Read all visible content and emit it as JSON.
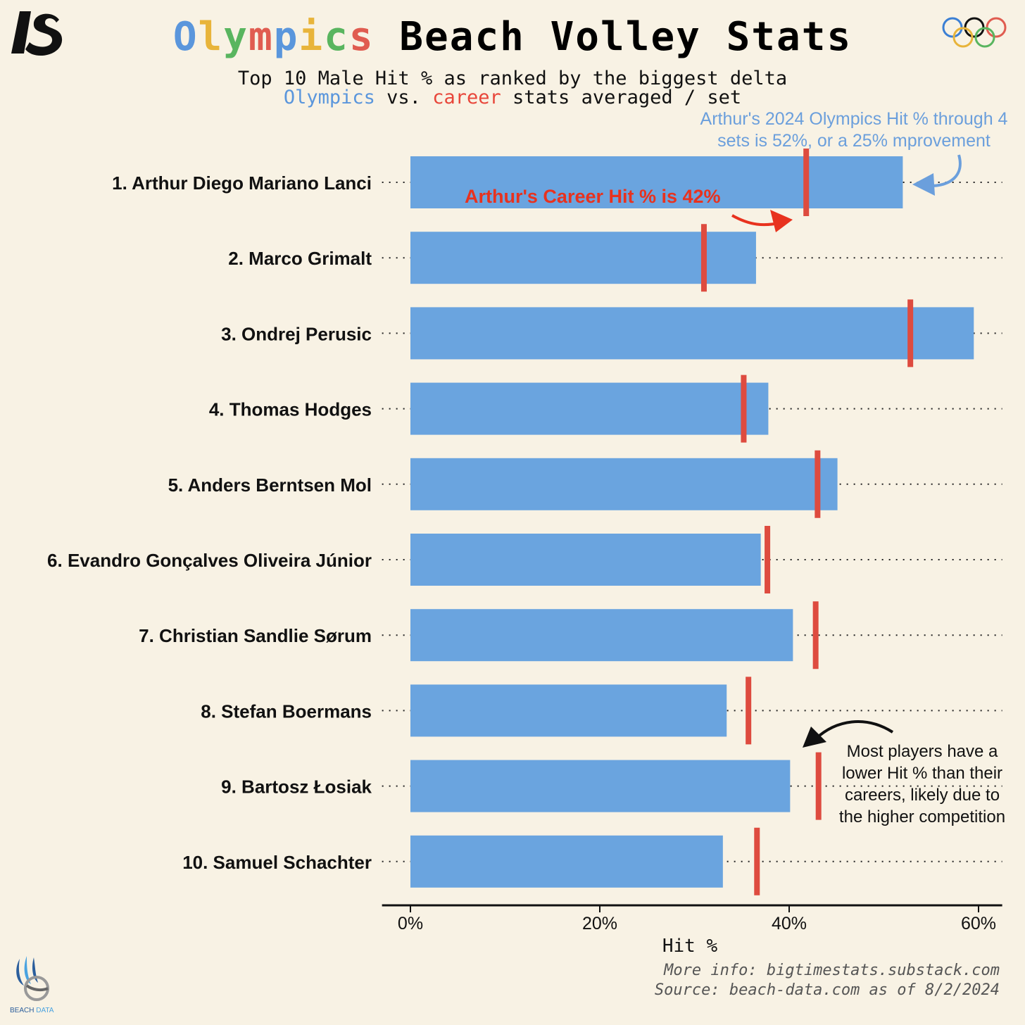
{
  "header": {
    "title_colored": "Olympics",
    "title_rest": "Beach Volley Stats",
    "subtitle_line1": "Top 10 Male Hit % as ranked by the biggest delta",
    "subtitle_olympics": "Olympics",
    "subtitle_vs": "vs.",
    "subtitle_career": "career",
    "subtitle_rest": "stats averaged / set"
  },
  "annotations": {
    "blue_note": "Arthur's 2024 Olympics Hit % through 4 sets is 52%, or a 25% mprovement",
    "red_note": "Arthur's Career Hit % is 42%",
    "black_note": "Most players have a lower Hit % than their careers, likely due to the higher competition"
  },
  "footer": {
    "more_info": "More info: bigtimestats.substack.com",
    "source": "Source: beach-data.com as of 8/2/2024"
  },
  "logos": {
    "brand_logo": "bigtimestats-logo",
    "olympic_rings": "olympic-rings-icon",
    "beach_data_logo": "beach-data-logo",
    "beach_data_text_1": "BEACH",
    "beach_data_text_2": "DATA"
  },
  "colors": {
    "olympics_bar": "#6aa4df",
    "career_marker": "#de4b3f",
    "background": "#f8f2e4"
  },
  "chart_data": {
    "type": "bar",
    "orientation": "horizontal",
    "categories": [
      "1. Arthur Diego Mariano Lanci",
      "2. Marco Grimalt",
      "3. Ondrej Perusic",
      "4. Thomas Hodges",
      "5. Anders Berntsen Mol",
      "6. Evandro Gonçalves Oliveira Júnior",
      "7. Christian Sandlie Sørum",
      "8. Stefan Boermans",
      "9. Bartosz Łosiak",
      "10. Samuel Schachter"
    ],
    "series": [
      {
        "name": "Olympics",
        "values": [
          52,
          36.5,
          59.5,
          37.8,
          45.1,
          37,
          40.4,
          33.4,
          40.1,
          33
        ]
      },
      {
        "name": "career",
        "values": [
          41.8,
          31,
          52.8,
          35.2,
          43,
          37.7,
          42.8,
          35.7,
          43.1,
          36.6
        ]
      }
    ],
    "xlabel": "Hit %",
    "x_ticks": [
      "0%",
      "20%",
      "40%",
      "60%"
    ],
    "x_tick_values": [
      0,
      20,
      40,
      60
    ],
    "xlim": [
      -3,
      62.5
    ],
    "grid": "dotted horizontal guide per row",
    "legend": "none (encoded in subtitle)"
  }
}
